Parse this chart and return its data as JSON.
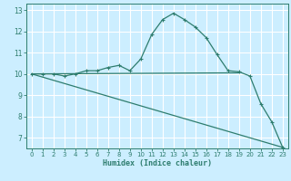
{
  "xlabel": "Humidex (Indice chaleur)",
  "xlim": [
    -0.5,
    23.5
  ],
  "ylim": [
    6.5,
    13.3
  ],
  "yticks": [
    7,
    8,
    9,
    10,
    11,
    12,
    13
  ],
  "xticks": [
    0,
    1,
    2,
    3,
    4,
    5,
    6,
    7,
    8,
    9,
    10,
    11,
    12,
    13,
    14,
    15,
    16,
    17,
    18,
    19,
    20,
    21,
    22,
    23
  ],
  "bg_color": "#cceeff",
  "grid_color": "#ffffff",
  "line_color": "#2e7d6e",
  "line1_x": [
    0,
    1,
    2,
    3,
    4,
    5,
    6,
    7,
    8,
    9,
    10,
    11,
    12,
    13,
    14,
    15,
    16,
    17,
    18,
    19,
    20,
    21,
    22,
    23
  ],
  "line1_y": [
    10.0,
    10.0,
    10.0,
    9.9,
    10.0,
    10.15,
    10.15,
    10.3,
    10.4,
    10.15,
    10.7,
    11.85,
    12.55,
    12.85,
    12.55,
    12.2,
    11.7,
    10.9,
    10.15,
    10.1,
    9.9,
    8.6,
    7.75,
    6.55
  ],
  "line2_x": [
    0,
    19
  ],
  "line2_y": [
    10.0,
    10.05
  ],
  "line3_x": [
    0,
    23
  ],
  "line3_y": [
    10.0,
    6.55
  ],
  "marker": "+"
}
